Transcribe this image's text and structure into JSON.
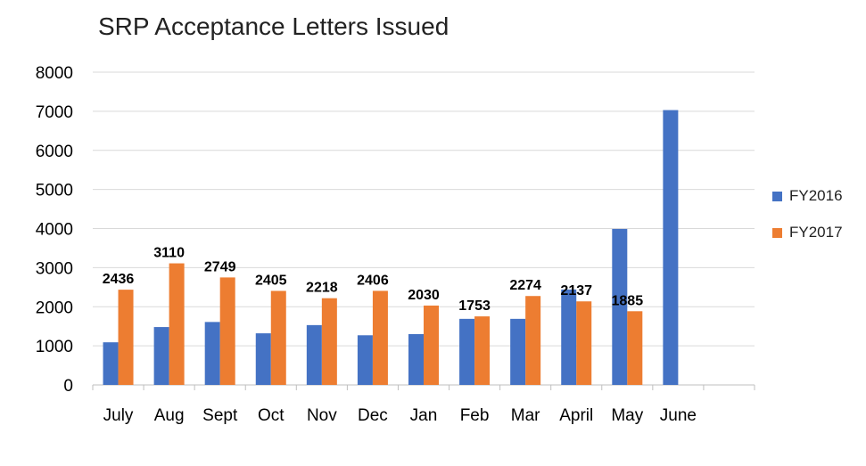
{
  "chart_data": {
    "type": "bar",
    "title": "SRP Acceptance Letters Issued",
    "categories": [
      "July",
      "Aug",
      "Sept",
      "Oct",
      "Nov",
      "Dec",
      "Jan",
      "Feb",
      "Mar",
      "April",
      "May",
      "June",
      ""
    ],
    "series": [
      {
        "name": "FY2016",
        "color": "#4472C4",
        "values": [
          1090,
          1480,
          1610,
          1320,
          1530,
          1270,
          1300,
          1690,
          1690,
          2440,
          3990,
          7030,
          null
        ]
      },
      {
        "name": "FY2017",
        "color": "#ED7D31",
        "values": [
          2436,
          3110,
          2749,
          2405,
          2218,
          2406,
          2030,
          1753,
          2274,
          2137,
          1885,
          null,
          null
        ],
        "data_labels": [
          "2436",
          "3110",
          "2749",
          "2405",
          "2218",
          "2406",
          "2030",
          "1753",
          "2274",
          "2137",
          "1885",
          "",
          ""
        ]
      }
    ],
    "yticks": [
      "0",
      "1000",
      "2000",
      "3000",
      "4000",
      "5000",
      "6000",
      "7000",
      "8000"
    ],
    "ylim": [
      0,
      8000
    ],
    "grid": true,
    "legend_position": "right"
  }
}
